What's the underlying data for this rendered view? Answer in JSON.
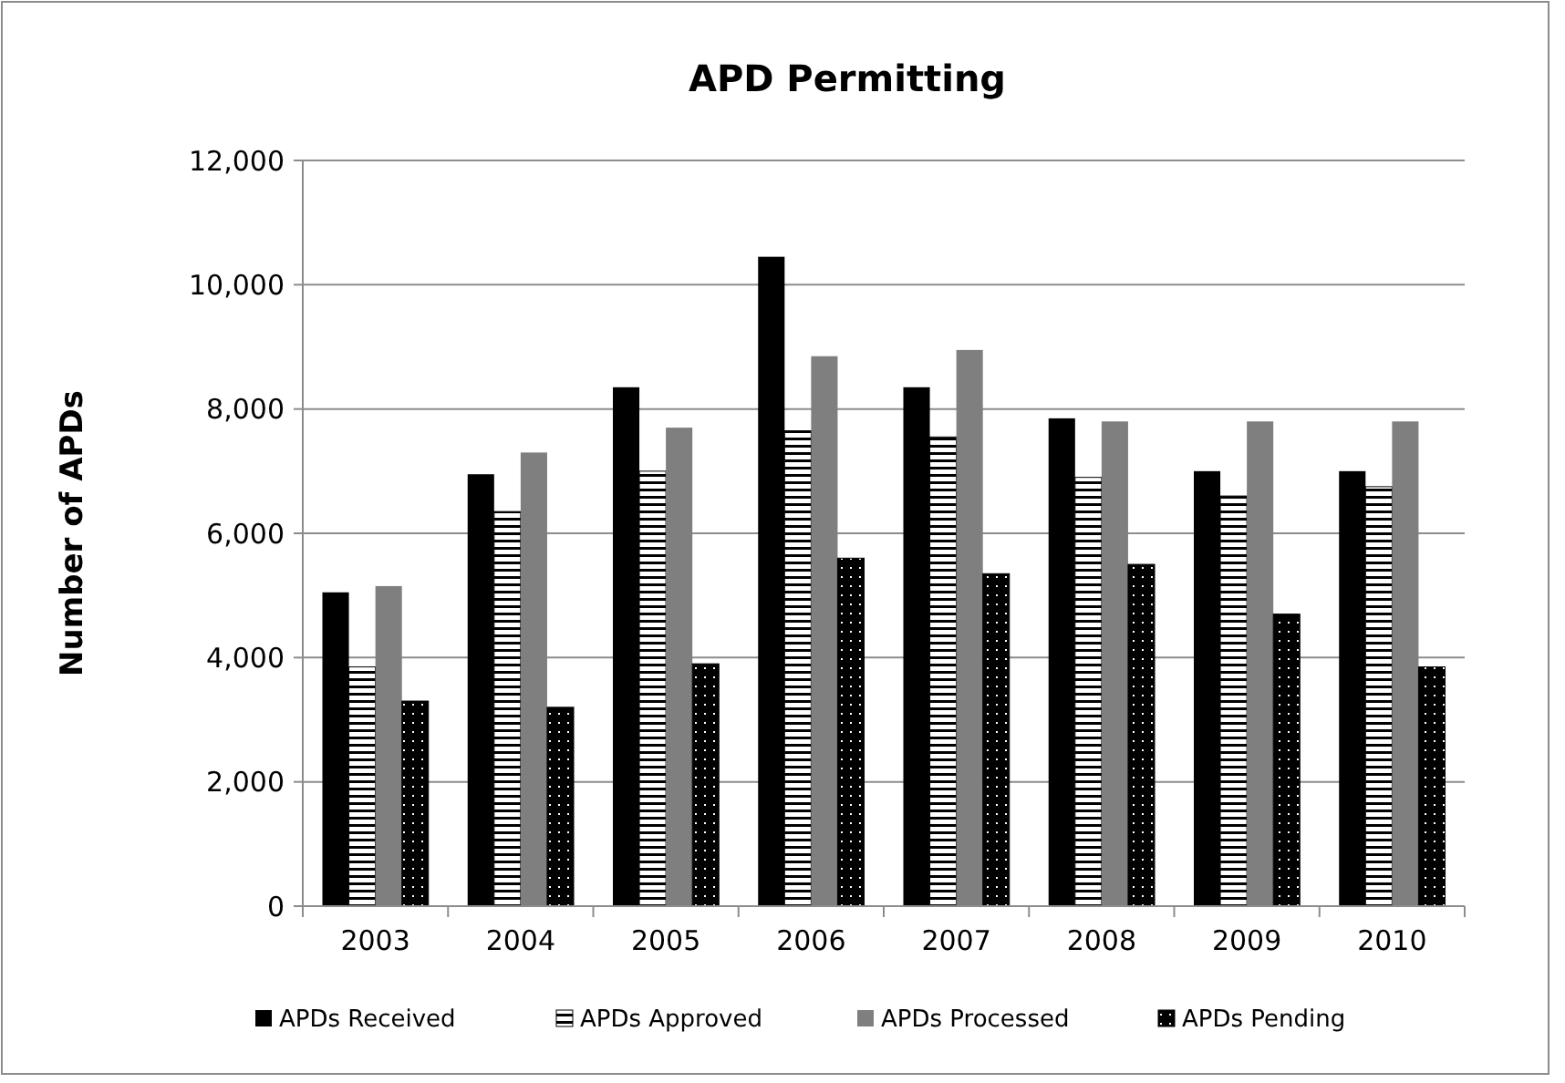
{
  "chart_data": {
    "type": "bar",
    "title": "APD Permitting",
    "ylabel": "Number of APDs",
    "categories": [
      "2003",
      "2004",
      "2005",
      "2006",
      "2007",
      "2008",
      "2009",
      "2010"
    ],
    "series": [
      {
        "name": "APDs Received",
        "color": "#000000",
        "values": [
          5050,
          6950,
          8350,
          10450,
          8350,
          7850,
          7000,
          7000
        ]
      },
      {
        "name": "APDs Approved",
        "color": "#000000",
        "values": [
          3850,
          6350,
          7000,
          7650,
          7550,
          6900,
          6600,
          6750
        ]
      },
      {
        "name": "APDs Processed",
        "color": "#7f7f7f",
        "values": [
          5150,
          7300,
          7700,
          8850,
          8950,
          7800,
          7800,
          7800
        ]
      },
      {
        "name": "APDs Pending",
        "color": "#000000",
        "values": [
          3300,
          3200,
          3900,
          5600,
          5350,
          5500,
          4700,
          3850
        ]
      }
    ],
    "ylim": [
      0,
      12000
    ],
    "yticks": [
      {
        "value": 0,
        "label": "0"
      },
      {
        "value": 2000,
        "label": "2,000"
      },
      {
        "value": 4000,
        "label": "4,000"
      },
      {
        "value": 6000,
        "label": "6,000"
      },
      {
        "value": 8000,
        "label": "8,000"
      },
      {
        "value": 10000,
        "label": "10,000"
      },
      {
        "value": 12000,
        "label": "12,000"
      }
    ],
    "grid": "y",
    "legend": "bottom"
  }
}
